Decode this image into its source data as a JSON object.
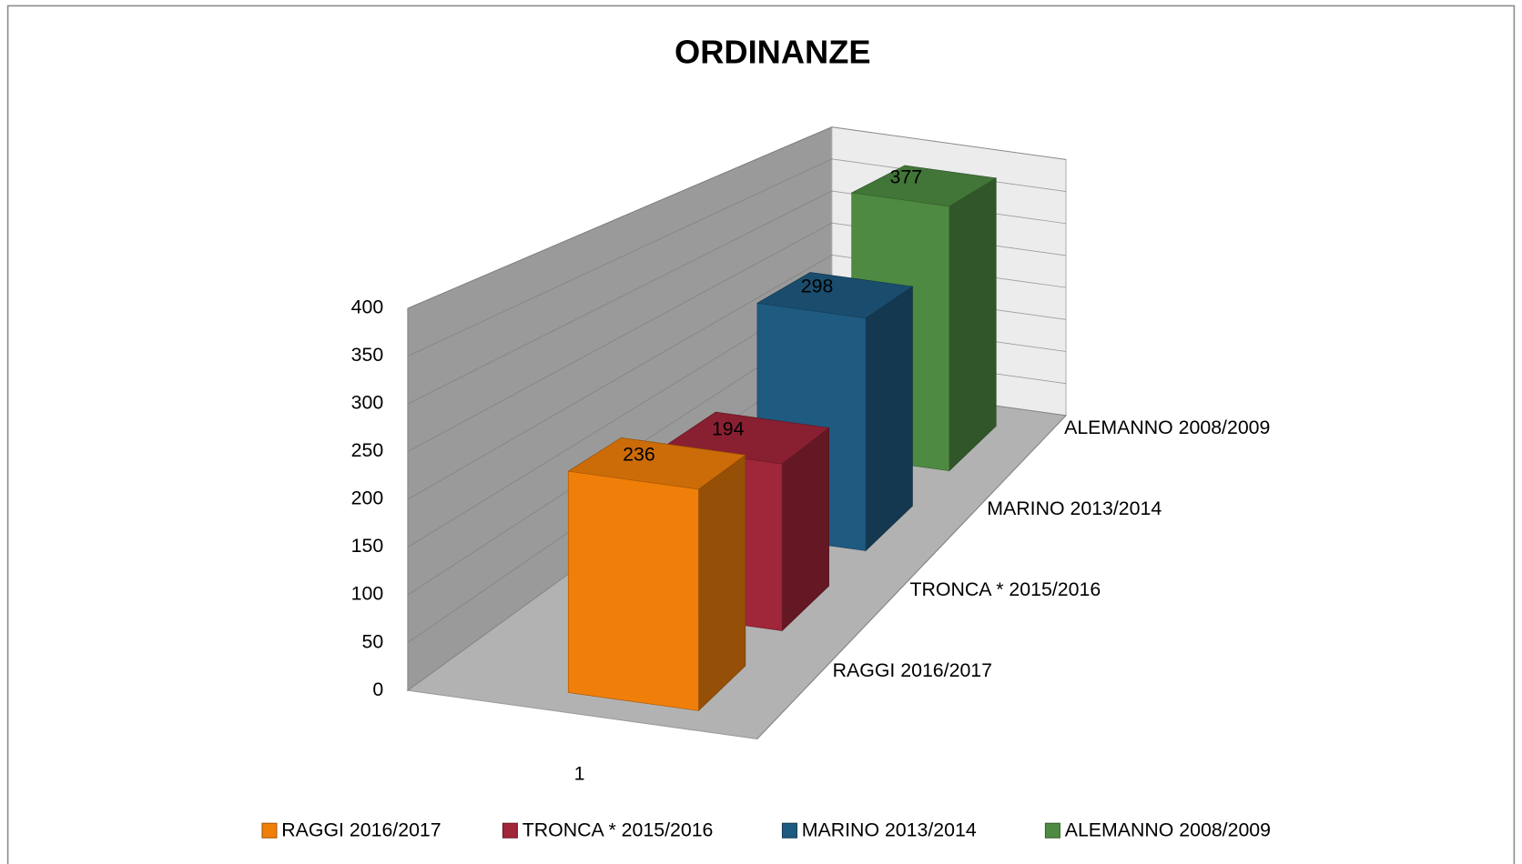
{
  "chart_data": {
    "type": "bar3d",
    "title": "ORDINANZE",
    "categories": [
      "1"
    ],
    "series": [
      {
        "name": "RAGGI 2016/2017",
        "color": "#f07f09",
        "values": [
          236
        ]
      },
      {
        "name": "TRONCA * 2015/2016",
        "color": "#a0263a",
        "values": [
          194
        ]
      },
      {
        "name": "MARINO 2013/2014",
        "color": "#1f5a80",
        "values": [
          298
        ]
      },
      {
        "name": "ALEMANNO 2008/2009",
        "color": "#4e8a42",
        "values": [
          377
        ]
      }
    ],
    "ylim": [
      0,
      400
    ],
    "yticks": [
      0,
      50,
      100,
      150,
      200,
      250,
      300,
      350,
      400
    ],
    "grid": true,
    "legend": "bottom"
  }
}
